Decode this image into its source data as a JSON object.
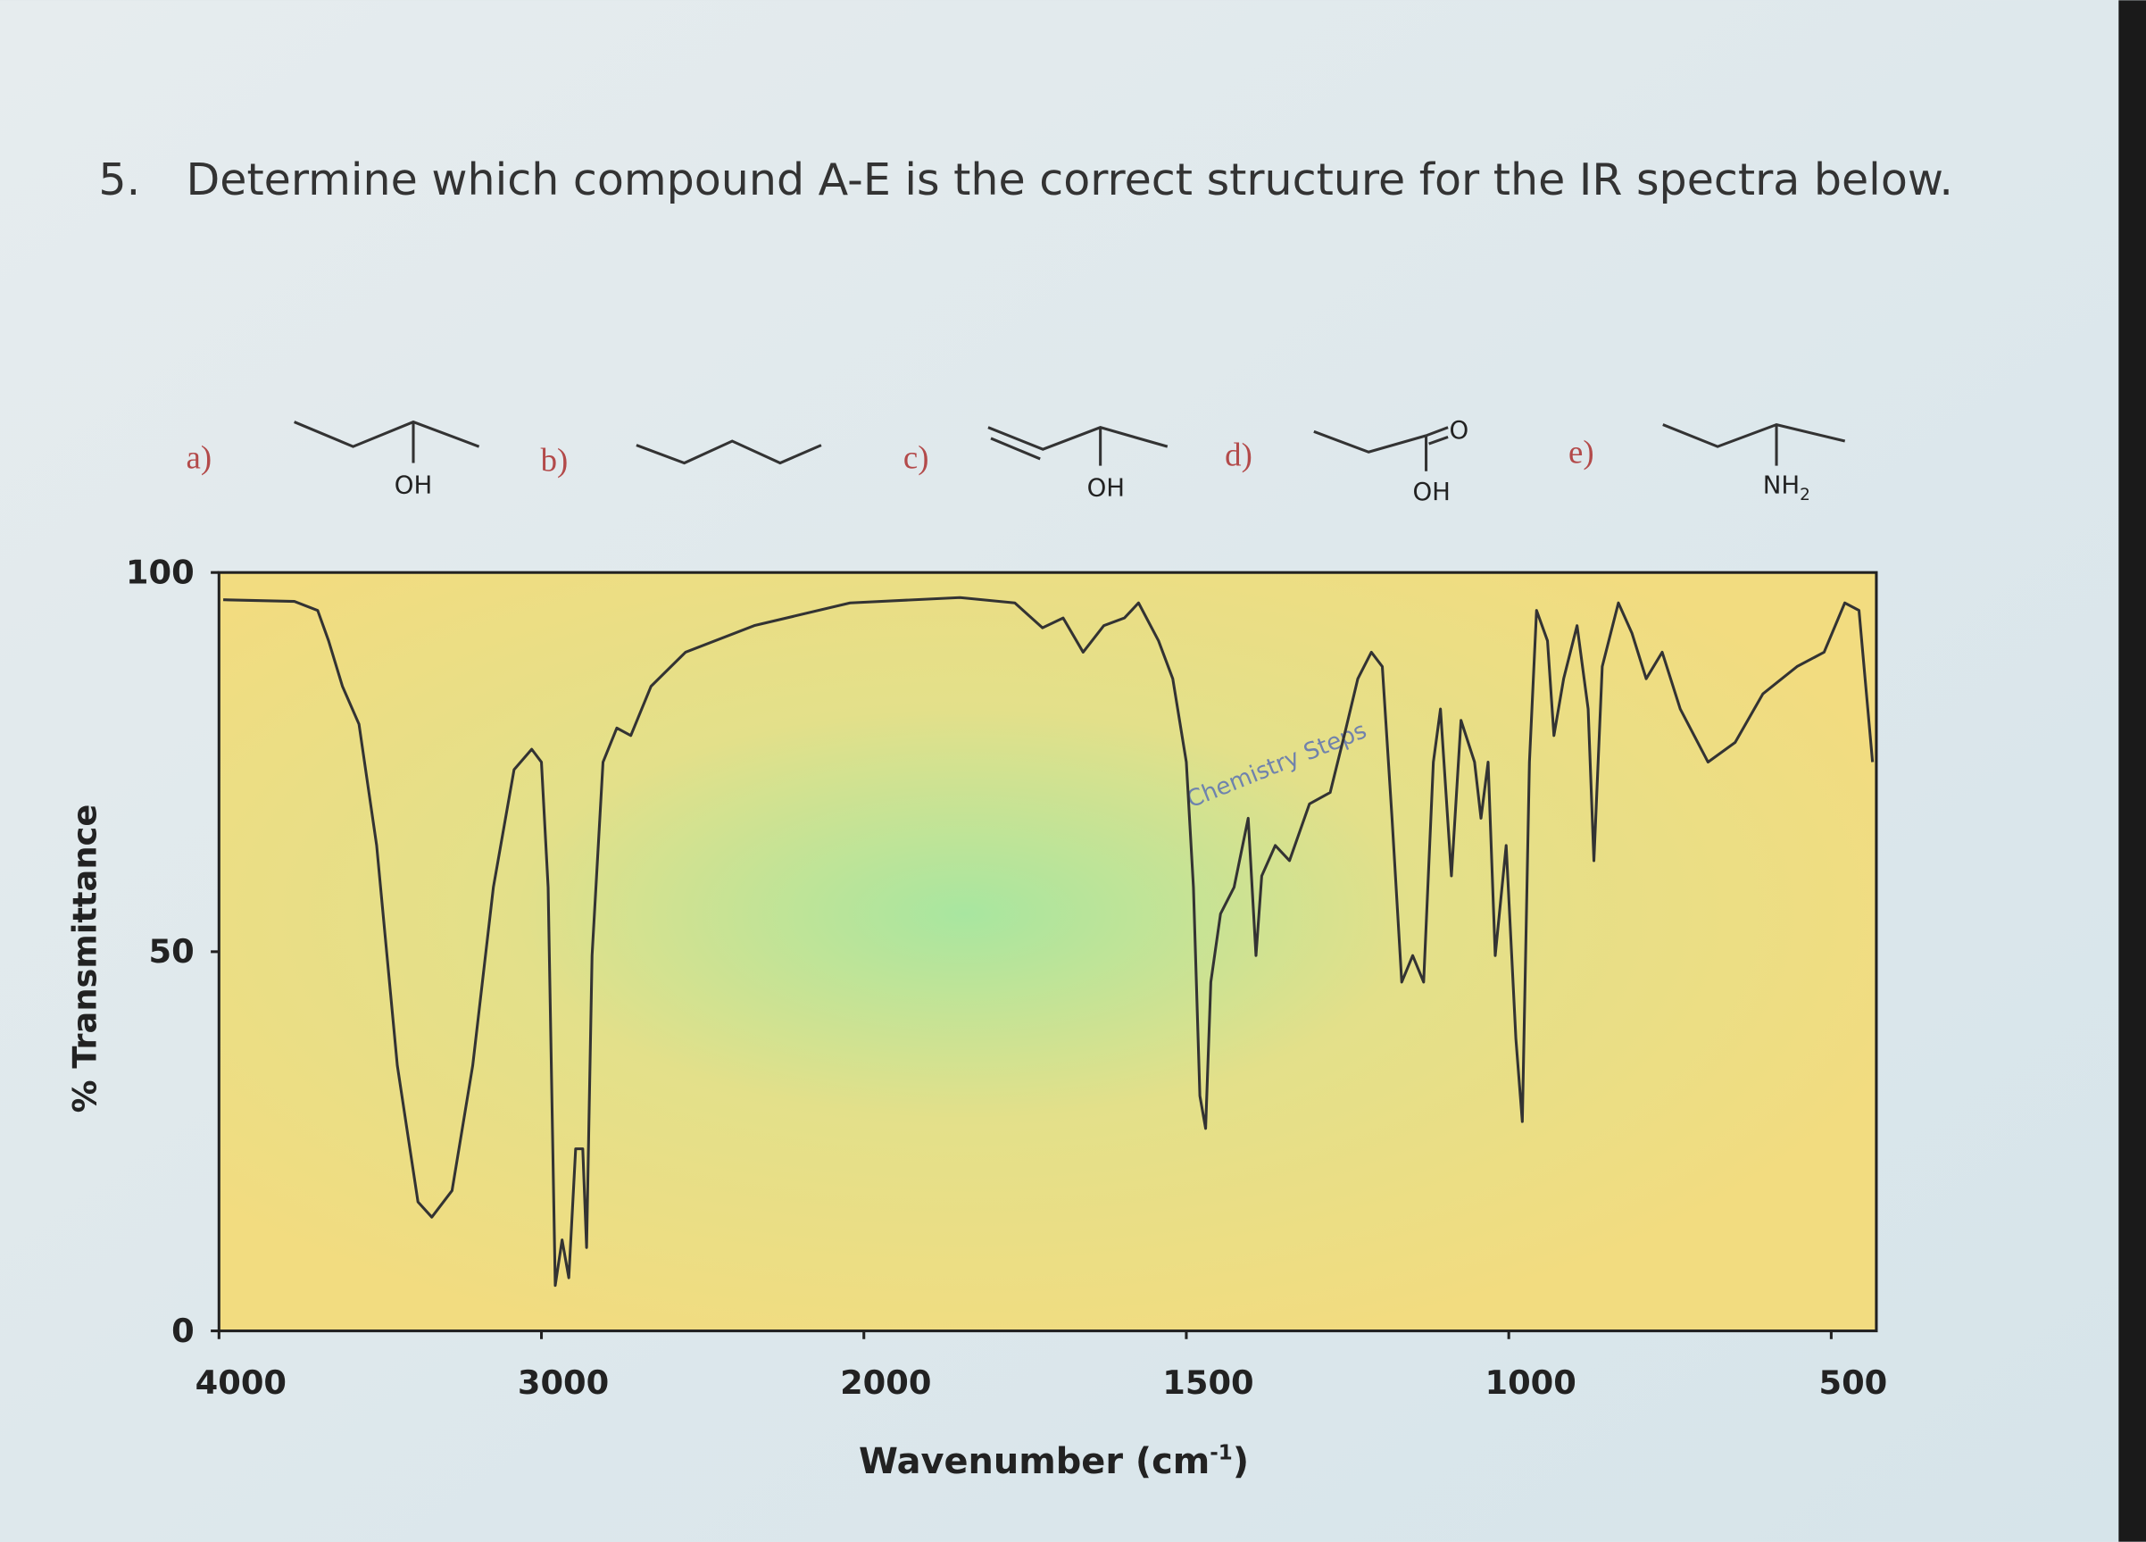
{
  "question": {
    "number": "5.",
    "text": "Determine which compound A-E is the correct structure for the IR spectra below."
  },
  "compounds": [
    {
      "letter": "a)",
      "labels": [
        "OH"
      ]
    },
    {
      "letter": "b)",
      "labels": []
    },
    {
      "letter": "c)",
      "labels": [
        "OH"
      ]
    },
    {
      "letter": "d)",
      "labels": [
        "O",
        "OH"
      ]
    },
    {
      "letter": "e)",
      "labels": [
        "NH",
        "2"
      ]
    }
  ],
  "chart_data": {
    "type": "line",
    "y_label": "% Transmittance",
    "x_label": "Wavenumber (cm",
    "x_label_sup": "-1",
    "x_label_end": ")",
    "watermark": "Chemistry Steps",
    "color": "#333333",
    "x": [
      3987,
      3766,
      3694,
      3660,
      3617,
      3566,
      3511,
      3447,
      3383,
      3340,
      3277,
      3213,
      3149,
      3085,
      3030,
      3000,
      2979,
      2957,
      2936,
      2915,
      2894,
      2872,
      2860,
      2843,
      2809,
      2766,
      2723,
      2660,
      2553,
      2340,
      2043,
      1851,
      1766,
      1723,
      1691,
      1660,
      1628,
      1596,
      1574,
      1543,
      1521,
      1500,
      1489,
      1479,
      1470,
      1462,
      1447,
      1426,
      1404,
      1392,
      1383,
      1362,
      1340,
      1309,
      1277,
      1255,
      1234,
      1213,
      1196,
      1181,
      1166,
      1149,
      1132,
      1117,
      1106,
      1089,
      1074,
      1053,
      1043,
      1032,
      1021,
      1004,
      989,
      979,
      968,
      957,
      940,
      930,
      915,
      894,
      877,
      868,
      855,
      830,
      809,
      787,
      762,
      734,
      691,
      649,
      606,
      553,
      511,
      479,
      457,
      436
    ],
    "values": [
      96.4,
      96.2,
      95,
      91,
      85,
      80,
      64,
      35,
      17,
      15,
      18.5,
      35,
      58.5,
      74,
      76.7,
      75,
      58.5,
      6,
      12,
      7,
      24,
      24,
      11,
      49.5,
      75,
      79.5,
      78.5,
      85,
      89.5,
      93,
      96,
      96.7,
      96,
      92.7,
      94,
      89.5,
      93,
      94,
      96,
      91,
      86,
      75,
      58.5,
      31,
      26.7,
      46,
      55,
      58.5,
      67.6,
      49.5,
      60,
      64,
      62,
      69.5,
      71,
      78.5,
      86,
      89.5,
      87.6,
      67.6,
      46,
      49.5,
      46,
      75,
      82,
      60,
      80.5,
      75,
      67.6,
      75,
      49.5,
      64,
      38.5,
      27.6,
      75,
      95,
      91,
      78.5,
      86,
      93,
      82,
      62,
      87.6,
      96,
      92,
      86,
      89.5,
      82,
      75,
      77.6,
      84,
      87.6,
      89.5,
      96,
      95,
      75
    ],
    "xlim": [
      4000,
      430
    ],
    "xticks": [
      4000,
      3000,
      2000,
      1500,
      1000,
      500
    ],
    "ylim": [
      0,
      100
    ],
    "yticks": [
      0,
      50,
      100
    ]
  }
}
